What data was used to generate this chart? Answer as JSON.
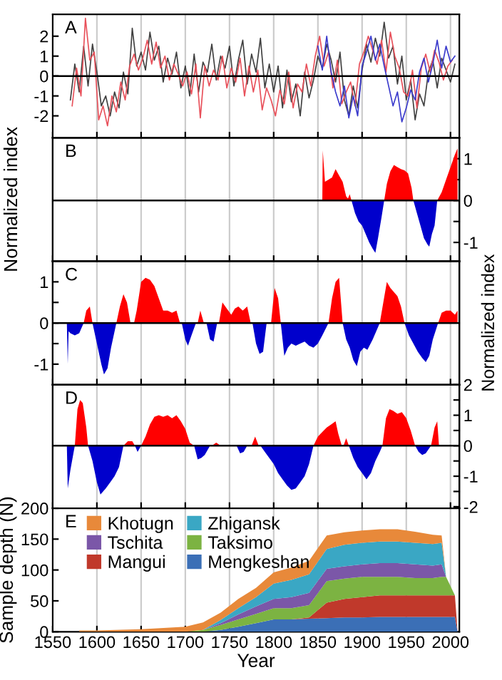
{
  "chart_data": [
    {
      "type": "line",
      "annotations": [
        "A"
      ],
      "xlim": [
        1550,
        2010
      ],
      "xticks": [
        1550,
        1600,
        1650,
        1700,
        1750,
        1800,
        1850,
        1900,
        1950,
        2000
      ],
      "ylim": [
        -3.1,
        3.1
      ],
      "yticks": [
        -2,
        -1,
        0,
        1,
        2
      ],
      "grid": "x",
      "tick_labels": "y",
      "ref_lines": [
        {
          "axis": "y",
          "value": 0,
          "color": "#000000"
        }
      ],
      "series": [
        {
          "color": "#404040",
          "x": [
            1570,
            1575,
            1580,
            1585,
            1590,
            1595,
            1600,
            1605,
            1610,
            1615,
            1620,
            1625,
            1630,
            1635,
            1640,
            1645,
            1650,
            1655,
            1660,
            1665,
            1670,
            1675,
            1680,
            1685,
            1690,
            1695,
            1700,
            1705,
            1710,
            1715,
            1720,
            1725,
            1730,
            1735,
            1740,
            1745,
            1750,
            1755,
            1760,
            1765,
            1770,
            1775,
            1780,
            1785,
            1790,
            1795,
            1800,
            1805,
            1810,
            1815,
            1820,
            1825,
            1830,
            1835,
            1840,
            1845,
            1850,
            1855,
            1860,
            1865,
            1870,
            1875,
            1880,
            1885,
            1890,
            1895,
            1900,
            1905,
            1910,
            1915,
            1920,
            1925,
            1930,
            1935,
            1940,
            1945,
            1950,
            1955,
            1960,
            1965,
            1970,
            1975,
            1980,
            1985,
            1990,
            1995,
            2000,
            2005
          ],
          "values": [
            -1.2,
            0.6,
            -0.8,
            1.5,
            -0.5,
            1.6,
            0.2,
            -1.5,
            -1.0,
            -2.0,
            -0.8,
            -1.6,
            0.2,
            -0.9,
            2.4,
            0.5,
            1.2,
            0.3,
            2.2,
            0.8,
            1.5,
            -0.3,
            0.9,
            0.1,
            1.2,
            -0.6,
            0.5,
            -1.0,
            1.1,
            -0.8,
            0.7,
            0.2,
            1.6,
            -0.2,
            1.0,
            0.4,
            1.5,
            -0.5,
            0.8,
            1.8,
            -0.4,
            1.1,
            0.2,
            1.9,
            -0.6,
            0.6,
            -0.8,
            0.5,
            -1.6,
            0.3,
            -1.3,
            -0.4,
            -2.0,
            0.2,
            -1.1,
            -0.2,
            1.0,
            0.4,
            1.6,
            0.8,
            -0.3,
            1.2,
            -1.2,
            -2.0,
            -0.5,
            -1.6,
            0.3,
            1.6,
            0.7,
            1.9,
            1.0,
            2.7,
            0.9,
            1.5,
            -0.4,
            1.0,
            -1.2,
            -0.2,
            -2.2,
            -0.9,
            -1.5,
            0.2,
            0.8,
            -0.6,
            0.9,
            0.3,
            -0.3,
            0.6
          ]
        },
        {
          "color": "#e8505a",
          "x": [
            1572,
            1577,
            1582,
            1587,
            1592,
            1597,
            1602,
            1607,
            1612,
            1617,
            1622,
            1627,
            1632,
            1637,
            1642,
            1647,
            1652,
            1657,
            1662,
            1667,
            1672,
            1677,
            1682,
            1687,
            1692,
            1697,
            1702,
            1707,
            1712,
            1717,
            1722,
            1727,
            1732,
            1737,
            1742,
            1747,
            1752,
            1757,
            1762,
            1767,
            1772,
            1777,
            1782,
            1787,
            1792,
            1797,
            1802,
            1807,
            1812,
            1817,
            1822,
            1827,
            1832,
            1837,
            1842,
            1847,
            1852,
            1857,
            1862,
            1867,
            1872,
            1877,
            1882,
            1887,
            1892,
            1897,
            1902,
            1907,
            1912,
            1917,
            1922,
            1927,
            1932,
            1937,
            1942,
            1947,
            1952,
            1957,
            1962,
            1967,
            1972,
            1977,
            1982,
            1987,
            1992,
            1997,
            2002
          ],
          "values": [
            -1.5,
            0.4,
            -1.0,
            2.9,
            0.8,
            1.2,
            -2.2,
            -1.5,
            -2.5,
            -1.0,
            -1.8,
            -0.3,
            -1.2,
            0.5,
            1.1,
            0.3,
            0.9,
            1.8,
            0.6,
            1.7,
            0.4,
            1.0,
            -0.2,
            0.6,
            0.1,
            -0.5,
            0.2,
            -0.9,
            0.6,
            -2.1,
            0.5,
            -0.5,
            0.3,
            -0.2,
            1.0,
            -0.6,
            0.4,
            -0.3,
            0.9,
            -1.0,
            0.5,
            -0.8,
            0.3,
            -1.7,
            -0.6,
            -1.2,
            -2.0,
            -0.7,
            -1.4,
            0.2,
            -1.6,
            -0.4,
            -0.8,
            0.6,
            -0.5,
            1.0,
            2.0,
            0.5,
            1.2,
            -0.6,
            0.8,
            -1.4,
            -0.8,
            -0.3,
            -1.5,
            0.6,
            1.2,
            2.0,
            1.3,
            0.6,
            1.8,
            0.2,
            2.2,
            1.0,
            0.4,
            -0.8,
            -1.0,
            0.3,
            -1.6,
            0.4,
            1.1,
            0.2,
            1.3,
            0.7,
            -0.2,
            0.5,
            0.8
          ]
        },
        {
          "color": "#3a3acc",
          "x": [
            1850,
            1855,
            1860,
            1865,
            1870,
            1875,
            1880,
            1885,
            1890,
            1895,
            1900,
            1905,
            1910,
            1915,
            1920,
            1925,
            1930,
            1935,
            1940,
            1945,
            1950,
            1955,
            1960,
            1965,
            1970,
            1975,
            1980,
            1985,
            1990,
            1995,
            2000,
            2005
          ],
          "values": [
            1.5,
            0.3,
            2.0,
            0.2,
            -0.8,
            -1.5,
            -0.5,
            -2.1,
            -1.0,
            -2.0,
            0.5,
            1.2,
            2.0,
            0.8,
            1.6,
            0.5,
            -0.5,
            -1.5,
            -0.8,
            -2.3,
            -1.6,
            -0.7,
            -1.2,
            0.2,
            0.9,
            -0.3,
            0.6,
            1.8,
            0.4,
            1.5,
            0.7,
            1.0
          ]
        }
      ]
    },
    {
      "type": "area",
      "annotations": [
        "B"
      ],
      "ylabel": "Normalized index",
      "xlim": [
        1550,
        2010
      ],
      "xticks": [
        1550,
        1600,
        1650,
        1700,
        1750,
        1800,
        1850,
        1900,
        1950,
        2000
      ],
      "y2lim": [
        -1.45,
        1.5
      ],
      "y2ticks": [
        -1,
        {
          "value": -0.5,
          "label": null
        },
        0,
        {
          "value": 0.5,
          "label": null
        },
        1
      ],
      "grid": "x",
      "tick_labels": "y",
      "ref_lines": [
        {
          "axis": "y2",
          "value": 0,
          "color": "#000000"
        }
      ],
      "series": [
        {
          "color": "#ff0000",
          "axis": "y2",
          "x": [
            1855,
            1855.5,
            1858,
            1862,
            1866,
            1870,
            1874,
            1878,
            1882,
            1884,
            1886,
            1888,
            1925,
            1928,
            1932,
            1936,
            1940,
            1944,
            1948,
            1952,
            1956,
            1958,
            1985,
            1990,
            1995,
            2000,
            2005,
            2008
          ],
          "values": [
            0,
            1.2,
            0.45,
            0.5,
            0.55,
            0.75,
            0.6,
            0.45,
            0.1,
            0.05,
            0.15,
            0,
            0,
            0.4,
            0.7,
            0.85,
            0.8,
            0.75,
            0.72,
            0.65,
            0.3,
            0,
            0,
            0.2,
            0.5,
            0.8,
            1.1,
            1.25
          ]
        },
        {
          "color": "#0000cc",
          "axis": "y2",
          "x": [
            1888,
            1892,
            1896,
            1900,
            1904,
            1908,
            1912,
            1915,
            1918,
            1922,
            1925,
            1958,
            1962,
            1966,
            1970,
            1974,
            1976,
            1979,
            1982,
            1985
          ],
          "values": [
            0,
            -0.3,
            -0.5,
            -0.6,
            -0.8,
            -1.0,
            -1.15,
            -1.25,
            -0.9,
            -0.4,
            0,
            0,
            -0.3,
            -0.6,
            -0.9,
            -1.05,
            -1.1,
            -0.8,
            -0.6,
            0
          ]
        }
      ]
    },
    {
      "type": "area",
      "annotations": [
        "C"
      ],
      "y2label": "Normalized index",
      "xlim": [
        1550,
        2010
      ],
      "xticks": [
        1550,
        1600,
        1650,
        1700,
        1750,
        1800,
        1850,
        1900,
        1950,
        2000
      ],
      "ylim": [
        -1.5,
        1.5
      ],
      "yticks": [
        -1,
        {
          "value": -0.5,
          "label": null
        },
        0,
        {
          "value": 0.5,
          "label": null
        },
        1
      ],
      "grid": "x",
      "tick_labels": "y",
      "ref_lines": [
        {
          "axis": "y",
          "value": 0,
          "color": "#000000"
        }
      ],
      "series": [
        {
          "color": "#ff0000",
          "x": [
            1585,
            1588,
            1592,
            1595,
            1622,
            1626,
            1630,
            1634,
            1638,
            1642,
            1645,
            1650,
            1655,
            1660,
            1665,
            1670,
            1675,
            1680,
            1685,
            1690,
            1694,
            1714,
            1717,
            1721,
            1738,
            1742,
            1747,
            1752,
            1756,
            1760,
            1765,
            1770,
            1774,
            1797,
            1801,
            1805,
            1808,
            1862,
            1866,
            1870,
            1874,
            1878,
            1920,
            1924,
            1928,
            1932,
            1936,
            1940,
            1944,
            1948,
            1986,
            1990,
            1995,
            2000,
            2005,
            2008
          ],
          "values": [
            0,
            0.3,
            0.4,
            0,
            0,
            0.4,
            0.7,
            0.5,
            0,
            0,
            0.3,
            1.0,
            1.1,
            1.05,
            0.9,
            0.6,
            0.3,
            0.3,
            0.25,
            0.3,
            0,
            0,
            0.3,
            0,
            0,
            0.5,
            0.35,
            0.2,
            0.35,
            0.4,
            0.3,
            0.4,
            0,
            0,
            0.85,
            0.6,
            0,
            0,
            0.6,
            1.0,
            1.1,
            0,
            0,
            0.5,
            1.0,
            0.85,
            0.75,
            0.65,
            0.4,
            0,
            0,
            0.25,
            0.3,
            0.3,
            0.2,
            0.3
          ]
        },
        {
          "color": "#0000cc",
          "x": [
            1566,
            1567,
            1568,
            1570,
            1575,
            1580,
            1585,
            1595,
            1600,
            1605,
            1608,
            1612,
            1616,
            1622,
            1696,
            1700,
            1703,
            1707,
            1712,
            1724,
            1728,
            1732,
            1736,
            1776,
            1780,
            1784,
            1788,
            1792,
            1808,
            1812,
            1816,
            1820,
            1825,
            1830,
            1835,
            1840,
            1845,
            1850,
            1855,
            1862,
            1878,
            1882,
            1886,
            1890,
            1894,
            1898,
            1902,
            1906,
            1912,
            1920,
            1948,
            1953,
            1958,
            1963,
            1968,
            1972,
            1976,
            1980,
            1986
          ],
          "values": [
            0,
            -1.0,
            -0.2,
            -0.25,
            -0.3,
            -0.25,
            0,
            0,
            -0.5,
            -1.0,
            -1.25,
            -1.1,
            -0.6,
            0,
            0,
            -0.4,
            -0.55,
            -0.3,
            0,
            0,
            -0.4,
            -0.45,
            0,
            0,
            -0.5,
            -0.75,
            -0.7,
            0,
            0,
            -0.8,
            -0.6,
            -0.5,
            -0.55,
            -0.5,
            -0.45,
            -0.55,
            -0.6,
            -0.5,
            -0.3,
            0,
            0,
            -0.4,
            -0.6,
            -0.9,
            -1.05,
            -0.7,
            -0.6,
            -0.65,
            -0.4,
            0,
            0,
            -0.3,
            -0.5,
            -0.7,
            -0.85,
            -0.95,
            -0.8,
            -0.4,
            0
          ]
        }
      ]
    },
    {
      "type": "area",
      "annotations": [
        "D"
      ],
      "xlim": [
        1550,
        2010
      ],
      "xticks": [
        1550,
        1600,
        1650,
        1700,
        1750,
        1800,
        1850,
        1900,
        1950,
        2000
      ],
      "y2lim": [
        -2.05,
        2.0
      ],
      "y2ticks": [
        -2,
        {
          "value": -1.5,
          "label": null
        },
        -1,
        {
          "value": -0.5,
          "label": null
        },
        0,
        {
          "value": 0.5,
          "label": null
        },
        1,
        {
          "value": 1.5,
          "label": null
        },
        2
      ],
      "grid": "x",
      "tick_labels": "y",
      "ref_lines": [
        {
          "axis": "y2",
          "value": 0,
          "color": "#000000"
        }
      ],
      "series": [
        {
          "color": "#ff0000",
          "axis": "y2",
          "x": [
            1575,
            1578,
            1581,
            1584,
            1588,
            1590,
            1630,
            1635,
            1640,
            1643,
            1650,
            1655,
            1660,
            1665,
            1670,
            1675,
            1680,
            1685,
            1690,
            1695,
            1700,
            1705,
            1710,
            1730,
            1735,
            1740,
            1775,
            1779,
            1783,
            1845,
            1850,
            1855,
            1860,
            1865,
            1870,
            1873,
            1877,
            1879,
            1882,
            1885,
            1923,
            1927,
            1931,
            1935,
            1940,
            1945,
            1950,
            1955,
            1960,
            1978,
            1982,
            1985,
            1987
          ],
          "values": [
            0,
            1.2,
            1.5,
            1.4,
            0.6,
            0,
            0,
            0.15,
            0.15,
            0,
            0,
            0.3,
            0.7,
            0.95,
            1.0,
            0.95,
            1.0,
            0.9,
            1.0,
            0.8,
            0.55,
            0.1,
            0,
            0,
            0.1,
            0,
            0,
            0.3,
            0,
            0,
            0.3,
            0.45,
            0.6,
            0.7,
            0.8,
            0.4,
            0,
            0,
            0.25,
            0,
            0,
            0.9,
            1.2,
            1.15,
            1.05,
            1.1,
            0.9,
            0.5,
            0,
            0,
            0.6,
            0.8,
            0
          ]
        },
        {
          "color": "#0000cc",
          "axis": "y2",
          "x": [
            1566,
            1567,
            1570,
            1575,
            1590,
            1595,
            1600,
            1604,
            1610,
            1615,
            1620,
            1625,
            1630,
            1643,
            1646,
            1650,
            1710,
            1714,
            1718,
            1722,
            1728,
            1758,
            1762,
            1766,
            1770,
            1785,
            1790,
            1795,
            1800,
            1805,
            1810,
            1815,
            1820,
            1825,
            1830,
            1835,
            1840,
            1845,
            1885,
            1890,
            1895,
            1900,
            1905,
            1910,
            1915,
            1920,
            1923,
            1960,
            1964,
            1968,
            1972,
            1978
          ],
          "values": [
            0,
            -1.4,
            -0.8,
            0,
            0,
            -0.5,
            -1.2,
            -1.6,
            -1.4,
            -1.2,
            -1.0,
            -0.7,
            0,
            0,
            -0.2,
            0,
            0,
            -0.45,
            -0.4,
            -0.3,
            0,
            0,
            -0.25,
            -0.2,
            0,
            0,
            -0.2,
            -0.4,
            -0.6,
            -0.9,
            -1.1,
            -1.3,
            -1.45,
            -1.4,
            -1.2,
            -1.0,
            -0.6,
            0,
            0,
            -0.4,
            -0.7,
            -0.9,
            -1.1,
            -0.9,
            -0.5,
            -0.2,
            0,
            0,
            -0.2,
            -0.3,
            -0.25,
            0
          ]
        }
      ]
    },
    {
      "type": "area",
      "stacked": true,
      "annotations": [
        "E"
      ],
      "xlabel": "Year",
      "ylabel": "Sample depth (N)",
      "xlim": [
        1550,
        2010
      ],
      "xticks": [
        1550,
        1600,
        1650,
        1700,
        1750,
        1800,
        1850,
        1900,
        1950,
        2000
      ],
      "ylim": [
        0,
        200
      ],
      "yticks": [
        0,
        50,
        100,
        150,
        200
      ],
      "grid": "x",
      "legend": "top left",
      "x": [
        1580,
        1600,
        1650,
        1700,
        1720,
        1740,
        1760,
        1780,
        1800,
        1820,
        1840,
        1860,
        1880,
        1900,
        1920,
        1940,
        1960,
        1980,
        1990,
        1995,
        2005,
        2008
      ],
      "series": [
        {
          "name": "Mengkeshan",
          "color": "#3b6fb6",
          "values": [
            0,
            0,
            0,
            0,
            0,
            3,
            8,
            14,
            20,
            20,
            21,
            22,
            23,
            23,
            24,
            24,
            24,
            24,
            24,
            24,
            24,
            0
          ]
        },
        {
          "name": "Mangui",
          "color": "#c0392b",
          "values": [
            0,
            0,
            0,
            0,
            0,
            0,
            0,
            0,
            0,
            0,
            2,
            25,
            30,
            33,
            35,
            35,
            35,
            35,
            35,
            35,
            35,
            0
          ]
        },
        {
          "name": "Taksimo",
          "color": "#7cb342",
          "values": [
            0,
            0,
            0,
            0,
            3,
            8,
            12,
            15,
            18,
            18,
            20,
            35,
            33,
            33,
            30,
            30,
            28,
            28,
            30,
            30,
            0,
            0
          ]
        },
        {
          "name": "Tschita",
          "color": "#7b57a8",
          "values": [
            0,
            0,
            0,
            0,
            0,
            3,
            8,
            12,
            15,
            18,
            20,
            20,
            20,
            20,
            22,
            22,
            22,
            20,
            20,
            0,
            0,
            0
          ]
        },
        {
          "name": "Zhigansk",
          "color": "#3aa7c4",
          "values": [
            0,
            0,
            0,
            0,
            0,
            5,
            10,
            15,
            25,
            28,
            30,
            32,
            35,
            35,
            35,
            35,
            35,
            35,
            35,
            0,
            0,
            0
          ]
        },
        {
          "name": "Khotugn",
          "color": "#e8893a",
          "values": [
            2,
            2,
            4,
            8,
            12,
            12,
            15,
            15,
            18,
            20,
            22,
            22,
            20,
            20,
            20,
            20,
            18,
            15,
            12,
            0,
            0,
            0
          ]
        }
      ]
    }
  ]
}
